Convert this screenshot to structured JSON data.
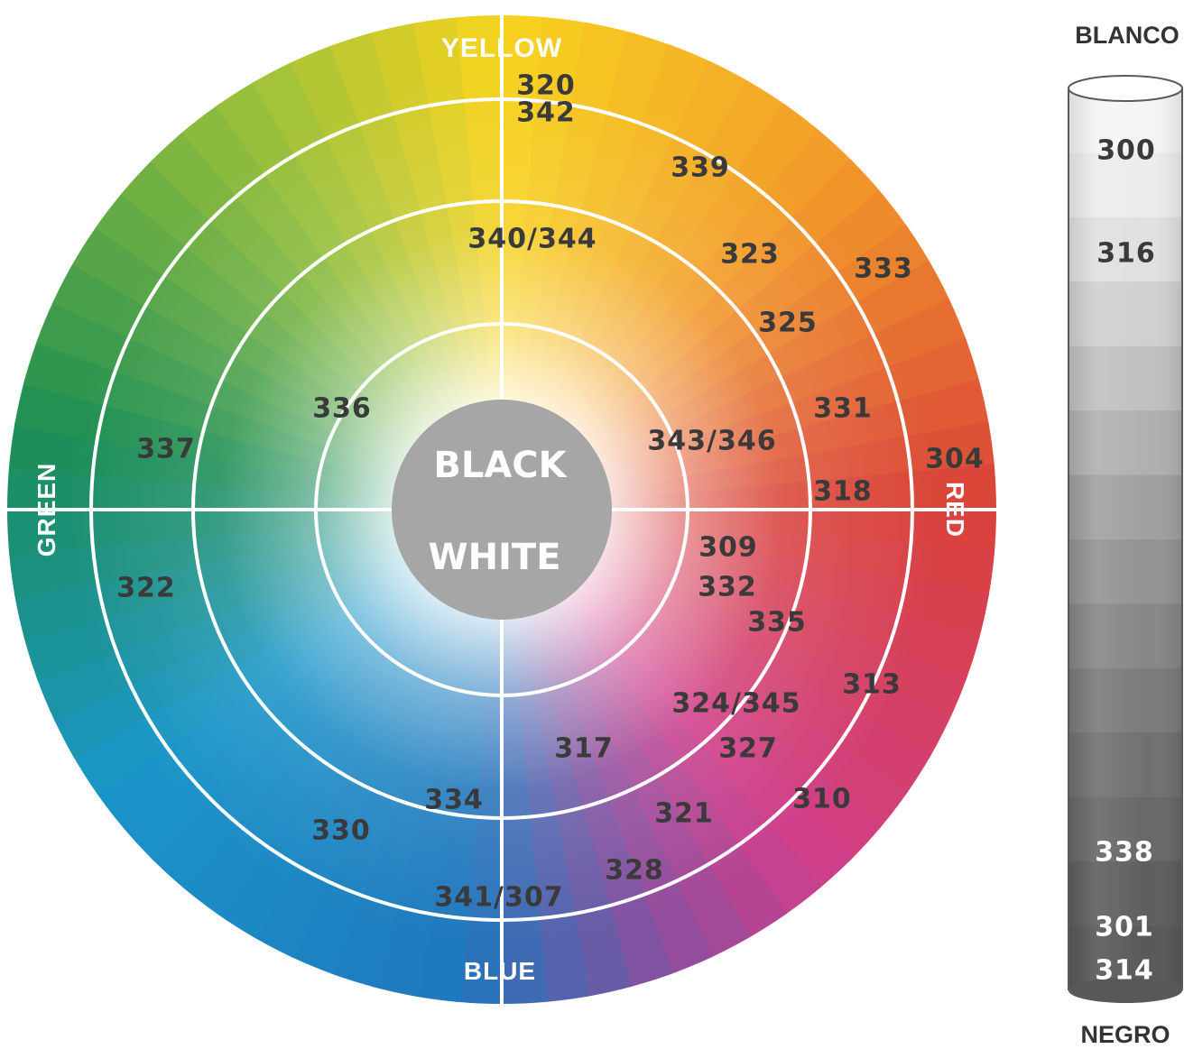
{
  "wheel": {
    "axes": {
      "top": "YELLOW",
      "right": "RED",
      "bottom": "BLUE",
      "left": "GREEN"
    },
    "center": {
      "upper": "BLACK",
      "lower": "WHITE"
    },
    "codes": [
      "320",
      "342",
      "339",
      "340/344",
      "323",
      "333",
      "325",
      "336",
      "331",
      "337",
      "343/346",
      "304",
      "318",
      "309",
      "322",
      "332",
      "335",
      "313",
      "324/345",
      "317",
      "327",
      "334",
      "310",
      "321",
      "330",
      "328",
      "341/307"
    ],
    "colors": {
      "yellow": "#f7d31f",
      "orange": "#f29a2a",
      "red": "#d9423a",
      "magenta": "#cf3f8d",
      "purple": "#8a4f9e",
      "blue": "#1f77bd",
      "cyan": "#1a96c9",
      "green": "#1d8e53",
      "lime": "#9dc23a",
      "center": "#a6a6a6",
      "lines": "#ffffff"
    }
  },
  "scale": {
    "top_label": "BLANCO",
    "bottom_label": "NEGRO",
    "codes": [
      "300",
      "316",
      "338",
      "301",
      "314"
    ],
    "shades": [
      "#f4f4f4",
      "#ececec",
      "#e0e0e0",
      "#d0d0d0",
      "#c0c0c0",
      "#b0b0b0",
      "#a0a0a0",
      "#939393",
      "#868686",
      "#7a7a7a",
      "#707070",
      "#676767",
      "#5e5e5e",
      "#585858"
    ]
  }
}
